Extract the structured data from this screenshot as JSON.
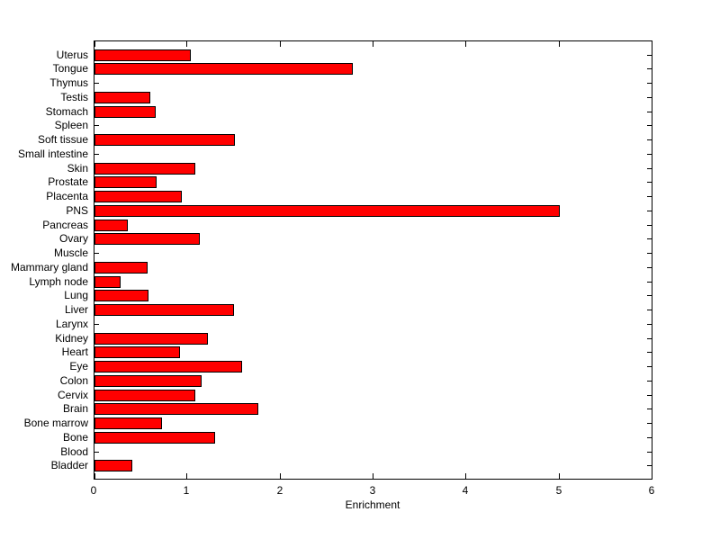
{
  "chart_data": {
    "type": "bar",
    "orientation": "horizontal",
    "title": "",
    "xlabel": "Enrichment",
    "ylabel": "",
    "xlim": [
      0,
      6
    ],
    "xticks": [
      0,
      1,
      2,
      3,
      4,
      5,
      6
    ],
    "grid": false,
    "legend": null,
    "bar_color": "#ff0000",
    "bar_edge_color": "#000000",
    "category_order": "top-to-bottom",
    "categories": [
      "Uterus",
      "Tongue",
      "Thymus",
      "Testis",
      "Stomach",
      "Spleen",
      "Soft tissue",
      "Small intestine",
      "Skin",
      "Prostate",
      "Placenta",
      "PNS",
      "Pancreas",
      "Ovary",
      "Muscle",
      "Mammary gland",
      "Lymph node",
      "Lung",
      "Liver",
      "Larynx",
      "Kidney",
      "Heart",
      "Eye",
      "Colon",
      "Cervix",
      "Brain",
      "Bone marrow",
      "Bone",
      "Blood",
      "Bladder"
    ],
    "values": [
      1.04,
      2.78,
      0,
      0.6,
      0.66,
      0,
      1.51,
      0,
      1.08,
      0.67,
      0.94,
      5.0,
      0.36,
      1.13,
      0,
      0.57,
      0.28,
      0.58,
      1.5,
      0,
      1.22,
      0.92,
      1.59,
      1.15,
      1.08,
      1.76,
      0.73,
      1.3,
      0,
      0.41
    ]
  }
}
